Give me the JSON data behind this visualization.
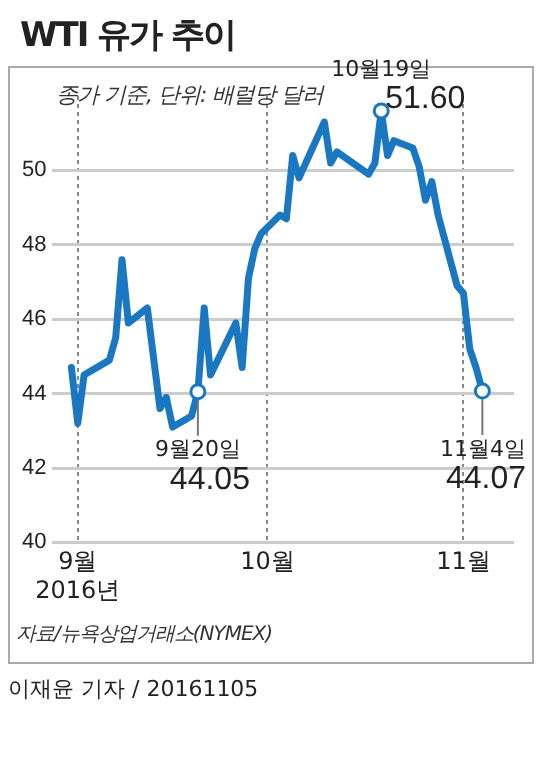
{
  "chart_data": {
    "type": "line",
    "title": "WTI 유가 추이",
    "subtitle": "종가 기준, 단위: 배럴당 달러",
    "x": [
      "2016-08-31",
      "2016-09-01",
      "2016-09-02",
      "2016-09-06",
      "2016-09-07",
      "2016-09-08",
      "2016-09-09",
      "2016-09-12",
      "2016-09-14",
      "2016-09-15",
      "2016-09-16",
      "2016-09-19",
      "2016-09-20",
      "2016-09-21",
      "2016-09-22",
      "2016-09-26",
      "2016-09-27",
      "2016-09-28",
      "2016-09-29",
      "2016-09-30",
      "2016-10-03",
      "2016-10-04",
      "2016-10-05",
      "2016-10-06",
      "2016-10-10",
      "2016-10-11",
      "2016-10-12",
      "2016-10-17",
      "2016-10-18",
      "2016-10-19",
      "2016-10-20",
      "2016-10-21",
      "2016-10-24",
      "2016-10-25",
      "2016-10-26",
      "2016-10-27",
      "2016-10-28",
      "2016-10-31",
      "2016-11-01",
      "2016-11-02",
      "2016-11-03",
      "2016-11-04"
    ],
    "series": [
      {
        "color": "#1a78c2",
        "values": [
          44.7,
          43.2,
          44.5,
          44.9,
          45.5,
          47.6,
          45.9,
          46.3,
          43.6,
          43.9,
          43.1,
          43.4,
          44.05,
          46.3,
          44.5,
          45.9,
          44.7,
          47.1,
          47.9,
          48.3,
          48.8,
          48.7,
          50.4,
          49.8,
          51.3,
          50.2,
          50.5,
          49.9,
          50.2,
          51.6,
          50.4,
          50.8,
          50.6,
          50.1,
          49.2,
          49.7,
          48.8,
          46.9,
          46.7,
          45.2,
          44.7,
          44.07
        ]
      }
    ],
    "xlim": [
      "2016-08-28",
      "2016-11-09"
    ],
    "xticks": [
      {
        "value": "2016-09-01",
        "label": "9월\n2016년"
      },
      {
        "value": "2016-10-01",
        "label": "10월"
      },
      {
        "value": "2016-11-01",
        "label": "11월"
      }
    ],
    "ylim": [
      40,
      52
    ],
    "yticks": [
      40,
      42,
      44,
      46,
      48,
      50
    ],
    "grid": true,
    "legend": false,
    "marker": "none",
    "line_style": "solid",
    "annotations": [
      {
        "text": "10월19일\n51.60",
        "x": "2016-10-19",
        "y": 51.6
      },
      {
        "text": "9월20일\n44.05",
        "x": "2016-09-20",
        "y": 44.05
      },
      {
        "text": "11월4일\n44.07",
        "x": "2016-11-04",
        "y": 44.07
      },
      "자료/뉴욕상업거래소(NYMEX)",
      "이재윤 기자 / 20161105"
    ]
  }
}
